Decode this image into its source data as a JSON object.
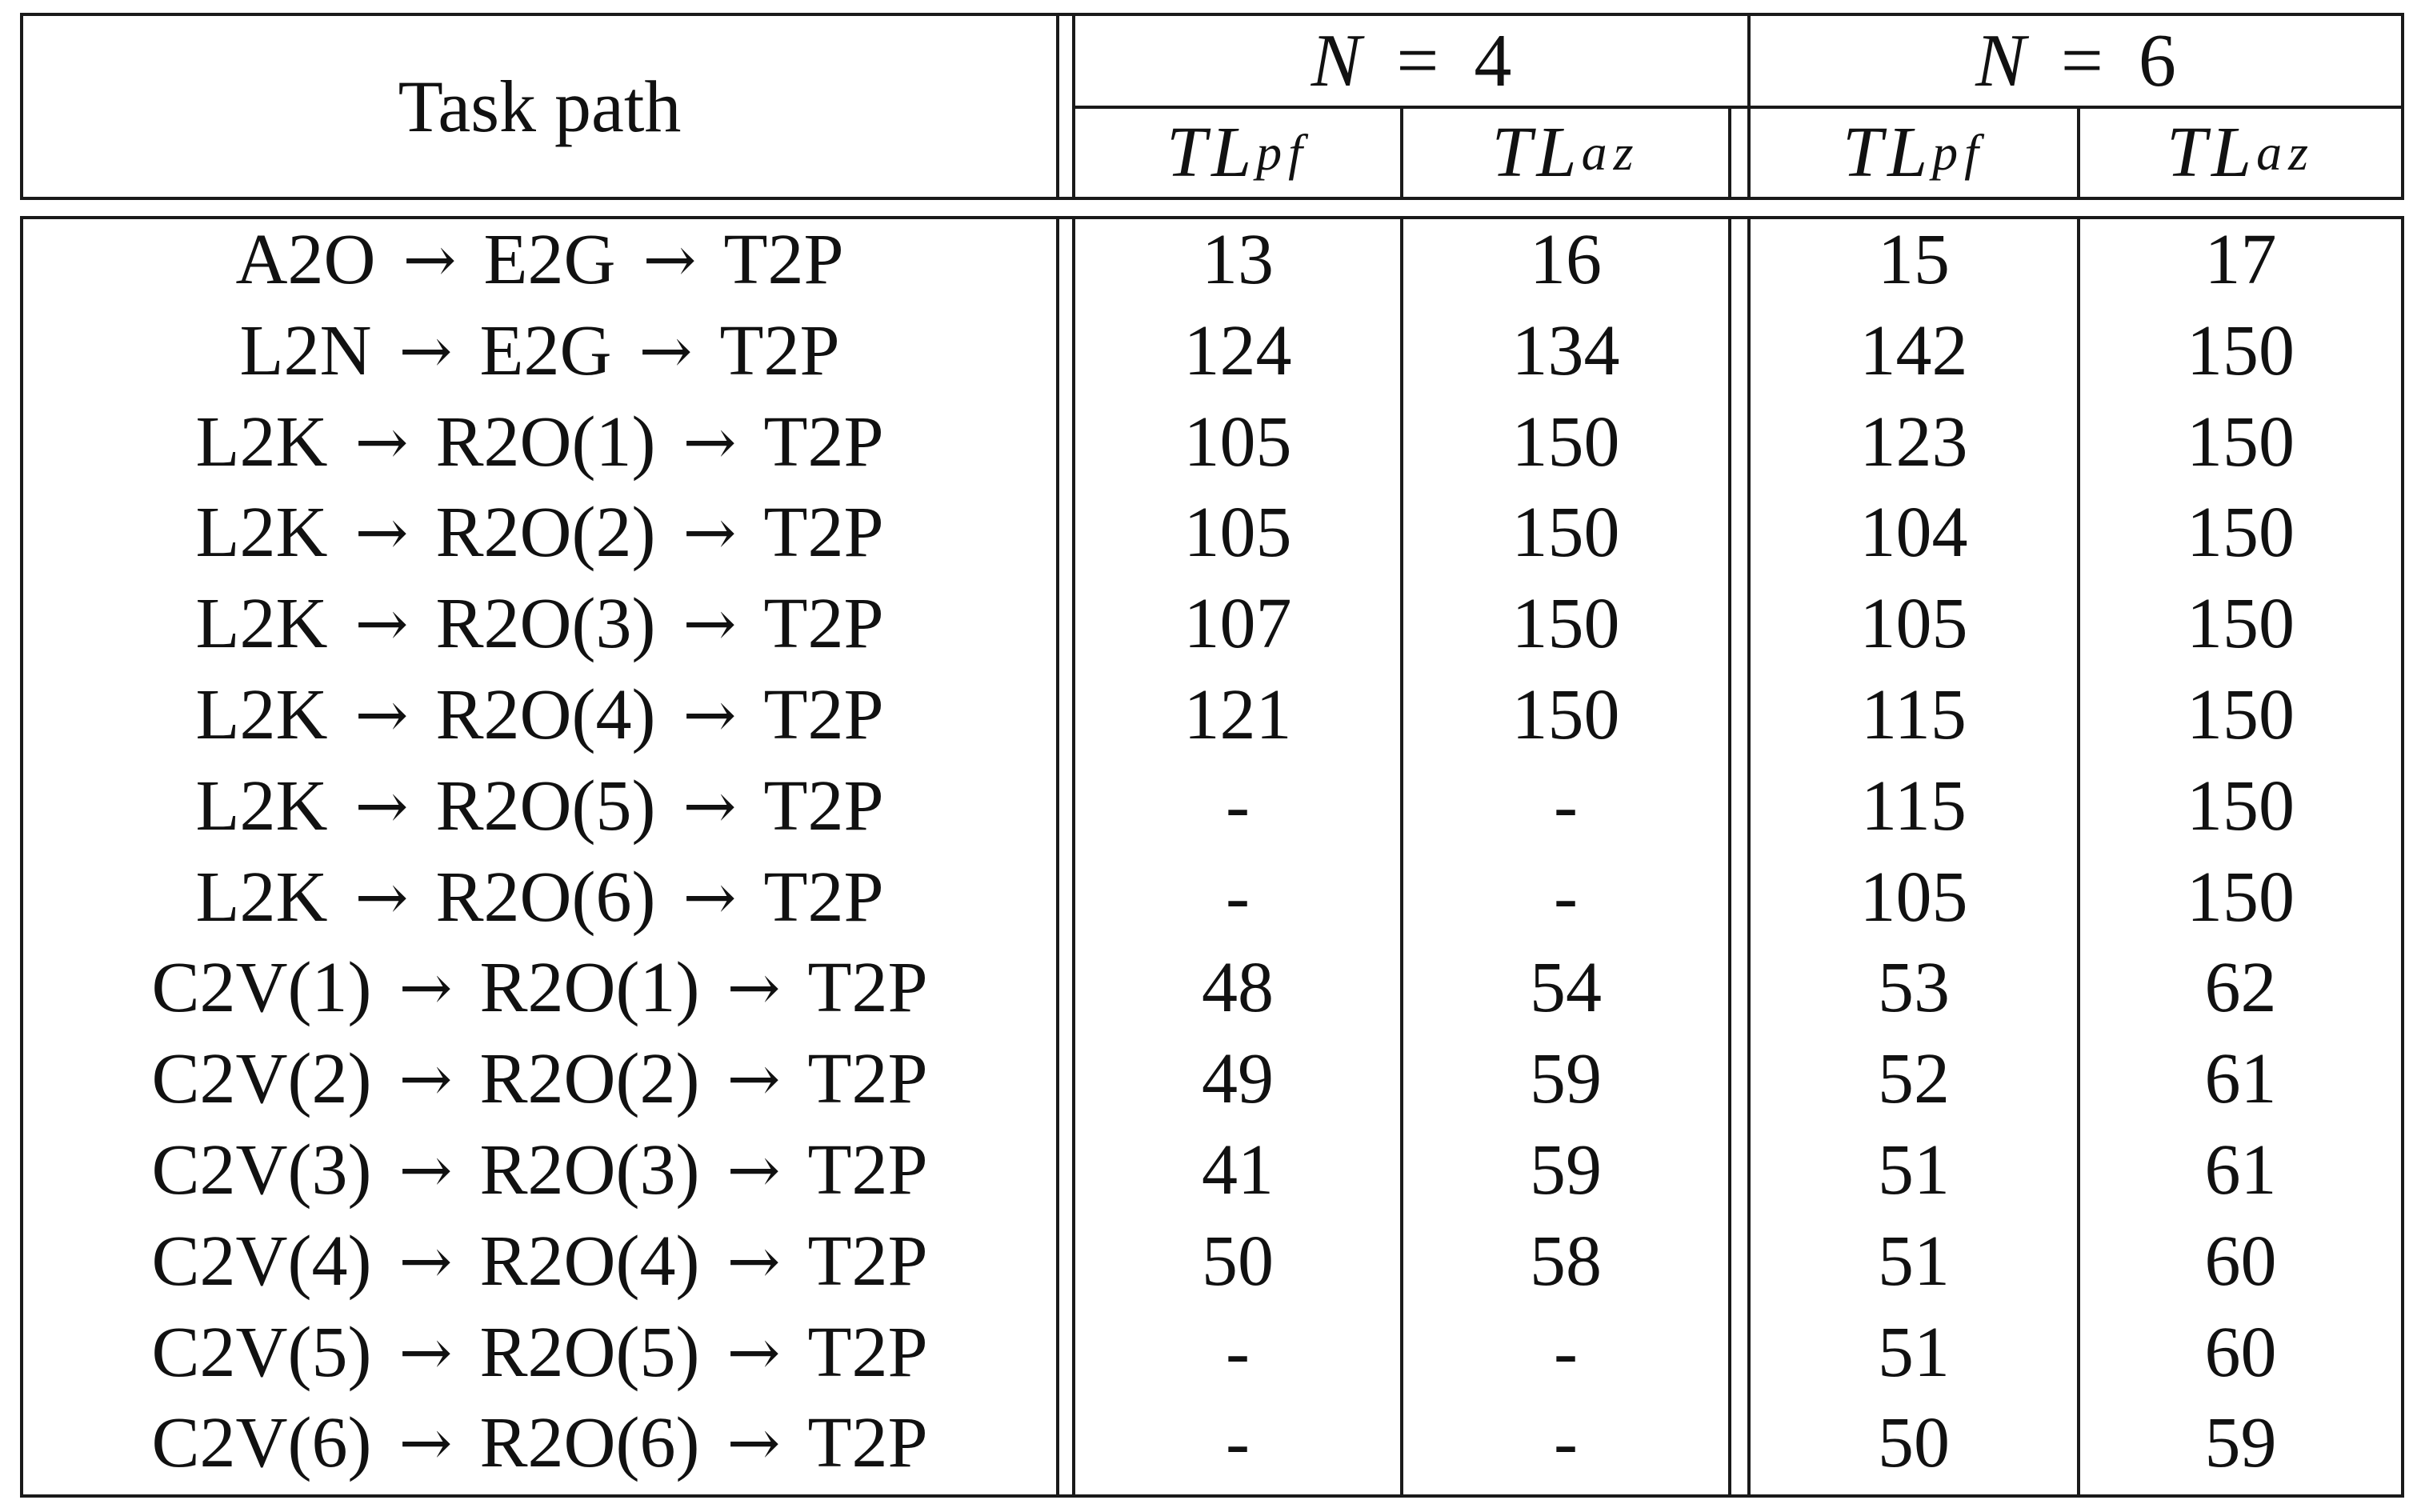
{
  "header": {
    "task_path": "Task path",
    "groups": [
      {
        "var": "N",
        "eq": "=",
        "value": "4"
      },
      {
        "var": "N",
        "eq": "=",
        "value": "6"
      }
    ],
    "subcols": [
      {
        "base": "TL",
        "sub": "pf"
      },
      {
        "base": "TL",
        "sub": "az"
      },
      {
        "base": "TL",
        "sub": "pf"
      },
      {
        "base": "TL",
        "sub": "az"
      }
    ]
  },
  "arrow_glyph": "→",
  "rows": [
    {
      "path": [
        "A2O",
        "E2G",
        "T2P"
      ],
      "values": [
        "13",
        "16",
        "15",
        "17"
      ]
    },
    {
      "path": [
        "L2N",
        "E2G",
        "T2P"
      ],
      "values": [
        "124",
        "134",
        "142",
        "150"
      ]
    },
    {
      "path": [
        "L2K",
        "R2O(1)",
        "T2P"
      ],
      "values": [
        "105",
        "150",
        "123",
        "150"
      ]
    },
    {
      "path": [
        "L2K",
        "R2O(2)",
        "T2P"
      ],
      "values": [
        "105",
        "150",
        "104",
        "150"
      ]
    },
    {
      "path": [
        "L2K",
        "R2O(3)",
        "T2P"
      ],
      "values": [
        "107",
        "150",
        "105",
        "150"
      ]
    },
    {
      "path": [
        "L2K",
        "R2O(4)",
        "T2P"
      ],
      "values": [
        "121",
        "150",
        "115",
        "150"
      ]
    },
    {
      "path": [
        "L2K",
        "R2O(5)",
        "T2P"
      ],
      "values": [
        "-",
        "-",
        "115",
        "150"
      ]
    },
    {
      "path": [
        "L2K",
        "R2O(6)",
        "T2P"
      ],
      "values": [
        "-",
        "-",
        "105",
        "150"
      ]
    },
    {
      "path": [
        "C2V(1)",
        "R2O(1)",
        "T2P"
      ],
      "values": [
        "48",
        "54",
        "53",
        "62"
      ]
    },
    {
      "path": [
        "C2V(2)",
        "R2O(2)",
        "T2P"
      ],
      "values": [
        "49",
        "59",
        "52",
        "61"
      ]
    },
    {
      "path": [
        "C2V(3)",
        "R2O(3)",
        "T2P"
      ],
      "values": [
        "41",
        "59",
        "51",
        "61"
      ]
    },
    {
      "path": [
        "C2V(4)",
        "R2O(4)",
        "T2P"
      ],
      "values": [
        "50",
        "58",
        "51",
        "60"
      ]
    },
    {
      "path": [
        "C2V(5)",
        "R2O(5)",
        "T2P"
      ],
      "values": [
        "-",
        "-",
        "51",
        "60"
      ]
    },
    {
      "path": [
        "C2V(6)",
        "R2O(6)",
        "T2P"
      ],
      "values": [
        "-",
        "-",
        "50",
        "59"
      ]
    }
  ]
}
